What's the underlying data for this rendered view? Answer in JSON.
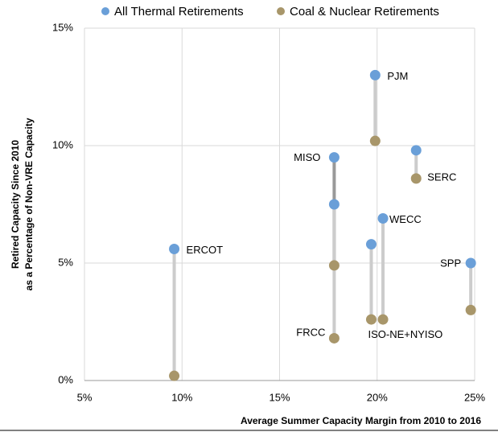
{
  "chart_data": {
    "type": "scatter",
    "xlabel": "Average Summer Capacity Margin from 2010 to 2016",
    "ylabel": [
      "Retired Capacity Since 2010",
      "as a Percentage of Non-VRE Capacity"
    ],
    "labels": [
      "ERCOT",
      "MISO",
      "FRCC",
      "PJM",
      "SERC",
      "WECC",
      "ISO-NE+NYISO",
      "SPP"
    ],
    "x": [
      9.6,
      17.8,
      17.8,
      19.9,
      22.0,
      20.3,
      19.7,
      24.8
    ],
    "series": [
      {
        "name": "All Thermal Retirements",
        "color": "#6a9fd8",
        "values": [
          5.6,
          9.5,
          7.5,
          13.0,
          9.8,
          6.9,
          5.8,
          5.0
        ]
      },
      {
        "name": "Coal & Nuclear Retirements",
        "color": "#a8966a",
        "values": [
          0.2,
          4.9,
          1.8,
          10.2,
          8.6,
          2.6,
          2.6,
          3.0
        ]
      }
    ],
    "connector_colors": [
      "#cccccc",
      "#999999",
      "#cccccc",
      "#cccccc",
      "#cccccc",
      "#cccccc",
      "#cccccc",
      "#cccccc"
    ],
    "xlim": [
      5,
      25
    ],
    "xticks": [
      {
        "value": 5,
        "label": "5%"
      },
      {
        "value": 10,
        "label": "10%"
      },
      {
        "value": 15,
        "label": "15%"
      },
      {
        "value": 20,
        "label": "20%"
      },
      {
        "value": 25,
        "label": "25%"
      }
    ],
    "ylim": [
      0,
      15
    ],
    "yticks": [
      {
        "value": 0,
        "label": "0%"
      },
      {
        "value": 5,
        "label": "5%"
      },
      {
        "value": 10,
        "label": "10%"
      },
      {
        "value": 15,
        "label": "15%"
      }
    ],
    "grid": true
  }
}
